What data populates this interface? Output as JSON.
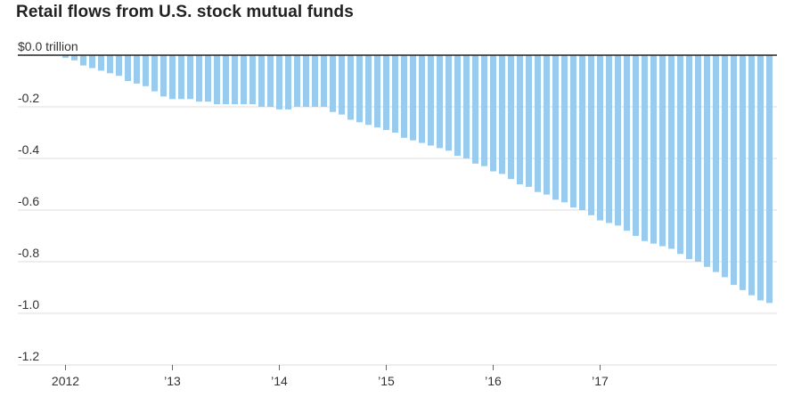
{
  "chart_data": {
    "type": "bar",
    "title": "Retail flows from U.S. stock mutual funds",
    "xlabel": "",
    "ylabel": "",
    "ylim": [
      -1.2,
      0
    ],
    "yticks": [
      {
        "value": 0,
        "label": "$0.0 trillion"
      },
      {
        "value": -0.2,
        "label": "-0.2"
      },
      {
        "value": -0.4,
        "label": "-0.4"
      },
      {
        "value": -0.6,
        "label": "-0.6"
      },
      {
        "value": -0.8,
        "label": "-0.8"
      },
      {
        "value": -1.0,
        "label": "-1.0"
      },
      {
        "value": -1.2,
        "label": "-1.2"
      }
    ],
    "xticks": [
      {
        "index": 0,
        "label": "2012"
      },
      {
        "index": 12,
        "label": "’13"
      },
      {
        "index": 24,
        "label": "’14"
      },
      {
        "index": 36,
        "label": "’15"
      },
      {
        "index": 48,
        "label": "’16"
      },
      {
        "index": 60,
        "label": "’17"
      }
    ],
    "grid": true,
    "bar_color": "#99cbee",
    "values": [
      -0.01,
      -0.02,
      -0.04,
      -0.05,
      -0.06,
      -0.07,
      -0.08,
      -0.1,
      -0.11,
      -0.12,
      -0.14,
      -0.16,
      -0.17,
      -0.17,
      -0.17,
      -0.18,
      -0.18,
      -0.19,
      -0.19,
      -0.19,
      -0.19,
      -0.19,
      -0.2,
      -0.2,
      -0.21,
      -0.21,
      -0.2,
      -0.2,
      -0.2,
      -0.2,
      -0.22,
      -0.23,
      -0.25,
      -0.26,
      -0.27,
      -0.28,
      -0.29,
      -0.3,
      -0.32,
      -0.33,
      -0.34,
      -0.35,
      -0.36,
      -0.37,
      -0.39,
      -0.4,
      -0.42,
      -0.43,
      -0.45,
      -0.46,
      -0.48,
      -0.5,
      -0.51,
      -0.53,
      -0.54,
      -0.56,
      -0.57,
      -0.59,
      -0.6,
      -0.62,
      -0.64,
      -0.65,
      -0.66,
      -0.68,
      -0.7,
      -0.72,
      -0.73,
      -0.74,
      -0.75,
      -0.77,
      -0.79,
      -0.8,
      -0.82,
      -0.84,
      -0.86,
      -0.89,
      -0.91,
      -0.93,
      -0.95,
      -0.96
    ]
  }
}
